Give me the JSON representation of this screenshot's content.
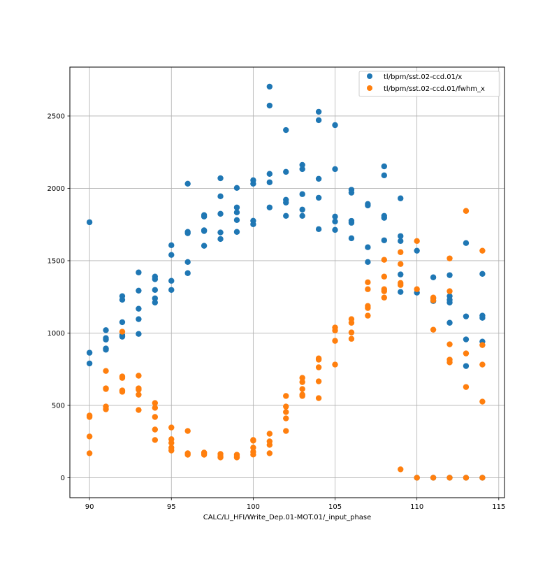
{
  "chart_data": {
    "type": "scatter",
    "title": "",
    "xlabel": "CALC/LI_HFI/Write_Dep.01-MOT.01/_input_phase",
    "ylabel": "",
    "xlim": [
      88.8,
      115.35
    ],
    "ylim": [
      -138,
      2838
    ],
    "xticks": [
      90,
      95,
      100,
      105,
      110,
      115
    ],
    "yticks": [
      0,
      500,
      1000,
      1500,
      2000,
      2500
    ],
    "grid": true,
    "legend_position": "top-right",
    "series": [
      {
        "name": "tl/bpm/sst.02-ccd.01/x",
        "color": "#1f77b4",
        "points": [
          [
            90,
            1766
          ],
          [
            90,
            864
          ],
          [
            90,
            790
          ],
          [
            91,
            1020
          ],
          [
            91,
            965
          ],
          [
            91,
            955
          ],
          [
            91,
            893
          ],
          [
            91,
            885
          ],
          [
            92,
            1255
          ],
          [
            92,
            1230
          ],
          [
            92,
            1075
          ],
          [
            92,
            985
          ],
          [
            92,
            975
          ],
          [
            93,
            1419
          ],
          [
            93,
            1293
          ],
          [
            93,
            1168
          ],
          [
            93,
            1096
          ],
          [
            93,
            994
          ],
          [
            94,
            1390
          ],
          [
            94,
            1372
          ],
          [
            94,
            1298
          ],
          [
            94,
            1240
          ],
          [
            94,
            1211
          ],
          [
            95,
            1607
          ],
          [
            95,
            1540
          ],
          [
            95,
            1361
          ],
          [
            95,
            1298
          ],
          [
            96,
            2032
          ],
          [
            96,
            1699
          ],
          [
            96,
            1690
          ],
          [
            96,
            1491
          ],
          [
            96,
            1414
          ],
          [
            97,
            1815
          ],
          [
            97,
            1805
          ],
          [
            97,
            1710
          ],
          [
            97,
            1705
          ],
          [
            97,
            1603
          ],
          [
            98,
            2070
          ],
          [
            98,
            1945
          ],
          [
            98,
            1824
          ],
          [
            98,
            1695
          ],
          [
            98,
            1650
          ],
          [
            99,
            2003
          ],
          [
            99,
            1868
          ],
          [
            99,
            1834
          ],
          [
            99,
            1781
          ],
          [
            99,
            1699
          ],
          [
            100,
            2056
          ],
          [
            100,
            2032
          ],
          [
            100,
            1776
          ],
          [
            100,
            1752
          ],
          [
            101,
            2703
          ],
          [
            101,
            2572
          ],
          [
            101,
            2100
          ],
          [
            101,
            2042
          ],
          [
            101,
            1868
          ],
          [
            102,
            2403
          ],
          [
            102,
            2114
          ],
          [
            102,
            1921
          ],
          [
            102,
            1902
          ],
          [
            102,
            1810
          ],
          [
            103,
            2162
          ],
          [
            103,
            2133
          ],
          [
            103,
            1960
          ],
          [
            103,
            1853
          ],
          [
            103,
            1810
          ],
          [
            104,
            2529
          ],
          [
            104,
            2471
          ],
          [
            104,
            2066
          ],
          [
            104,
            1935
          ],
          [
            104,
            1718
          ],
          [
            105,
            2437
          ],
          [
            105,
            2133
          ],
          [
            105,
            1805
          ],
          [
            105,
            1771
          ],
          [
            105,
            1713
          ],
          [
            106,
            1990
          ],
          [
            106,
            1970
          ],
          [
            106,
            1775
          ],
          [
            106,
            1762
          ],
          [
            106,
            1655
          ],
          [
            107,
            1892
          ],
          [
            107,
            1882
          ],
          [
            107,
            1593
          ],
          [
            107,
            1491
          ],
          [
            108,
            2152
          ],
          [
            108,
            2090
          ],
          [
            108,
            1810
          ],
          [
            108,
            1796
          ],
          [
            108,
            1641
          ],
          [
            109,
            1931
          ],
          [
            109,
            1670
          ],
          [
            109,
            1636
          ],
          [
            109,
            1405
          ],
          [
            109,
            1284
          ],
          [
            110,
            1569
          ],
          [
            110,
            1279
          ],
          [
            110,
            0
          ],
          [
            111,
            1385
          ],
          [
            111,
            1240
          ],
          [
            111,
            1221
          ],
          [
            111,
            0
          ],
          [
            112,
            1400
          ],
          [
            112,
            1255
          ],
          [
            112,
            1230
          ],
          [
            112,
            1211
          ],
          [
            112,
            1071
          ],
          [
            112,
            0
          ],
          [
            113,
            1622
          ],
          [
            113,
            1115
          ],
          [
            113,
            956
          ],
          [
            113,
            772
          ],
          [
            113,
            0
          ],
          [
            114,
            1409
          ],
          [
            114,
            1120
          ],
          [
            114,
            1105
          ],
          [
            114,
            941
          ],
          [
            114,
            0
          ]
        ]
      },
      {
        "name": "tl/bpm/sst.02-ccd.01/fwhm_x",
        "color": "#ff7f0e",
        "points": [
          [
            90,
            430
          ],
          [
            90,
            420
          ],
          [
            90,
            285
          ],
          [
            90,
            169
          ],
          [
            91,
            738
          ],
          [
            91,
            618
          ],
          [
            91,
            613
          ],
          [
            91,
            492
          ],
          [
            91,
            473
          ],
          [
            92,
            1009
          ],
          [
            92,
            700
          ],
          [
            92,
            690
          ],
          [
            92,
            603
          ],
          [
            92,
            594
          ],
          [
            93,
            705
          ],
          [
            93,
            618
          ],
          [
            93,
            608
          ],
          [
            93,
            574
          ],
          [
            93,
            468
          ],
          [
            94,
            516
          ],
          [
            94,
            483
          ],
          [
            94,
            420
          ],
          [
            94,
            333
          ],
          [
            94,
            261
          ],
          [
            95,
            347
          ],
          [
            95,
            266
          ],
          [
            95,
            241
          ],
          [
            95,
            208
          ],
          [
            95,
            188
          ],
          [
            96,
            323
          ],
          [
            96,
            169
          ],
          [
            96,
            159
          ],
          [
            97,
            174
          ],
          [
            97,
            169
          ],
          [
            97,
            159
          ],
          [
            98,
            164
          ],
          [
            98,
            150
          ],
          [
            98,
            140
          ],
          [
            99,
            159
          ],
          [
            99,
            150
          ],
          [
            99,
            140
          ],
          [
            100,
            261
          ],
          [
            100,
            256
          ],
          [
            100,
            208
          ],
          [
            100,
            179
          ],
          [
            100,
            160
          ],
          [
            101,
            304
          ],
          [
            101,
            251
          ],
          [
            101,
            227
          ],
          [
            101,
            169
          ],
          [
            102,
            565
          ],
          [
            102,
            492
          ],
          [
            102,
            454
          ],
          [
            102,
            410
          ],
          [
            102,
            323
          ],
          [
            103,
            690
          ],
          [
            103,
            661
          ],
          [
            103,
            613
          ],
          [
            103,
            574
          ],
          [
            103,
            565
          ],
          [
            104,
            825
          ],
          [
            104,
            816
          ],
          [
            104,
            763
          ],
          [
            104,
            666
          ],
          [
            104,
            550
          ],
          [
            105,
            1038
          ],
          [
            105,
            1018
          ],
          [
            105,
            946
          ],
          [
            105,
            782
          ],
          [
            106,
            1096
          ],
          [
            106,
            1071
          ],
          [
            106,
            1004
          ],
          [
            106,
            960
          ],
          [
            107,
            1351
          ],
          [
            107,
            1303
          ],
          [
            107,
            1187
          ],
          [
            107,
            1173
          ],
          [
            107,
            1120
          ],
          [
            108,
            1506
          ],
          [
            108,
            1390
          ],
          [
            108,
            1303
          ],
          [
            108,
            1289
          ],
          [
            108,
            1245
          ],
          [
            109,
            1559
          ],
          [
            109,
            1477
          ],
          [
            109,
            1346
          ],
          [
            109,
            1332
          ],
          [
            109,
            58
          ],
          [
            110,
            1636
          ],
          [
            110,
            1303
          ],
          [
            110,
            0
          ],
          [
            111,
            1245
          ],
          [
            111,
            1226
          ],
          [
            111,
            1023
          ],
          [
            111,
            0
          ],
          [
            112,
            1516
          ],
          [
            112,
            1289
          ],
          [
            112,
            922
          ],
          [
            112,
            816
          ],
          [
            112,
            797
          ],
          [
            112,
            0
          ],
          [
            113,
            1844
          ],
          [
            113,
            859
          ],
          [
            113,
            627
          ],
          [
            113,
            0
          ],
          [
            114,
            1569
          ],
          [
            114,
            917
          ],
          [
            114,
            782
          ],
          [
            114,
            526
          ],
          [
            114,
            0
          ]
        ]
      }
    ]
  }
}
